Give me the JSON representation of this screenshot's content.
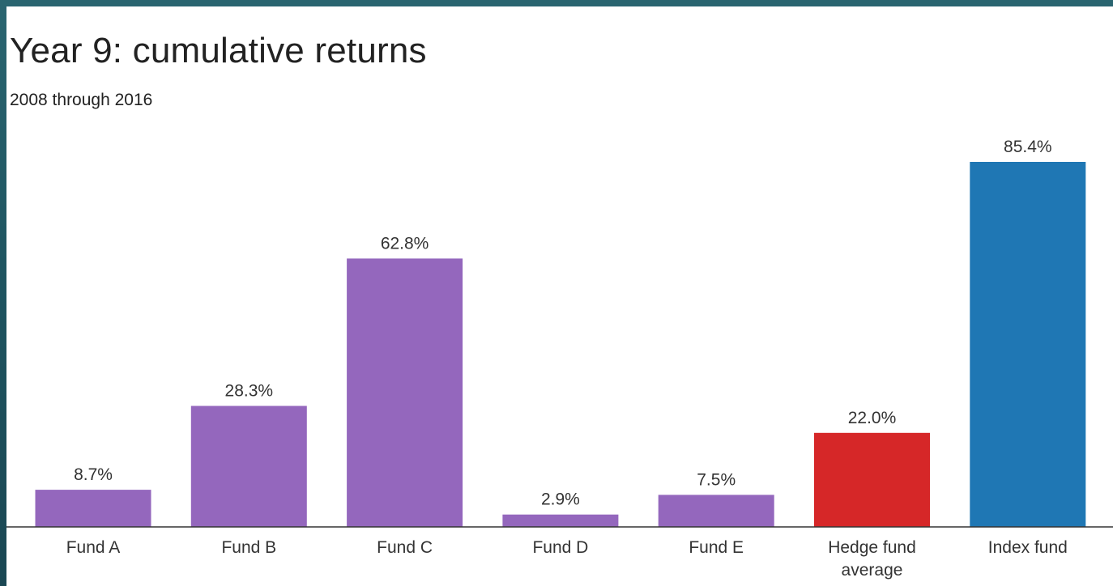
{
  "chart_data": {
    "type": "bar",
    "title": "Year 9: cumulative returns",
    "subtitle": "2008 through 2016",
    "categories": [
      "Fund A",
      "Fund B",
      "Fund C",
      "Fund D",
      "Fund E",
      "Hedge fund average",
      "Index fund"
    ],
    "category_lines": [
      [
        "Fund A"
      ],
      [
        "Fund B"
      ],
      [
        "Fund C"
      ],
      [
        "Fund D"
      ],
      [
        "Fund E"
      ],
      [
        "Hedge fund",
        "average"
      ],
      [
        "Index fund"
      ]
    ],
    "values": [
      8.7,
      28.3,
      62.8,
      2.9,
      7.5,
      22.0,
      85.4
    ],
    "value_labels": [
      "8.7%",
      "28.3%",
      "62.8%",
      "2.9%",
      "7.5%",
      "22.0%",
      "85.4%"
    ],
    "bar_colors": [
      "#9467bd",
      "#9467bd",
      "#9467bd",
      "#9467bd",
      "#9467bd",
      "#d62728",
      "#1f77b4"
    ],
    "ylim": [
      0,
      85.4
    ],
    "xlabel": "",
    "ylabel": "",
    "grid": false,
    "legend": "none"
  }
}
